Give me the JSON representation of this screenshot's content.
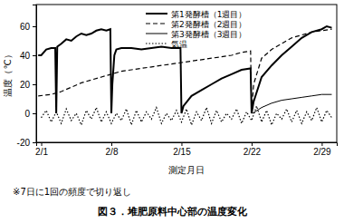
{
  "chart_data": {
    "type": "line",
    "title": "図３．堆肥原料中心部の温度変化",
    "subtitle": "※7日に1回の頻度で切り返し",
    "x_label": "測定月日",
    "y_label": "温度（℃）",
    "xlim": [
      0.5,
      30.5
    ],
    "xticks": [
      {
        "value": 1,
        "label": "2/1"
      },
      {
        "value": 8,
        "label": "2/8"
      },
      {
        "value": 15,
        "label": "2/15"
      },
      {
        "value": 22,
        "label": "2/22"
      },
      {
        "value": 29,
        "label": "2/29"
      }
    ],
    "ylim": [
      -20,
      75
    ],
    "yticks": [
      -20,
      0,
      20,
      40,
      60
    ],
    "grid": false,
    "legend": "top",
    "series": [
      {
        "name": "第1発酵槽（1週目）",
        "color": "#000000",
        "line_style": "solid",
        "x": [
          0.7,
          1,
          1.5,
          2,
          2.4,
          2.5,
          2.6,
          3,
          3.5,
          4,
          4.5,
          5,
          5.5,
          6,
          6.5,
          7,
          7.5,
          7.9,
          8.0,
          8.1,
          8.3,
          8.5,
          9,
          10,
          11,
          12,
          13,
          14,
          14.9,
          15.0,
          15.2,
          16,
          17,
          18,
          19,
          20,
          21,
          21.9,
          22.0,
          22.2,
          23,
          24,
          25,
          26,
          27,
          28,
          29,
          29.5,
          30
        ],
        "values": [
          40,
          40,
          44,
          45,
          45,
          0,
          46,
          48,
          51,
          50,
          53,
          55,
          54,
          55,
          57,
          58,
          57,
          58,
          0,
          20,
          40,
          44,
          45,
          45,
          44,
          45,
          46,
          45,
          45,
          0,
          5,
          12,
          16,
          20,
          24,
          27,
          30,
          31,
          0,
          8,
          25,
          33,
          40,
          46,
          52,
          56,
          58,
          60,
          59
        ]
      },
      {
        "name": "第2発酵槽（2週目）",
        "color": "#000000",
        "line_style": "dashed",
        "x": [
          0.7,
          2,
          3,
          4,
          5,
          6,
          7,
          8,
          9,
          10,
          11,
          12,
          13,
          14,
          15,
          16,
          17,
          18,
          19,
          20,
          21,
          21.9,
          22.0,
          22.2,
          23,
          24,
          25,
          26,
          27,
          28,
          29,
          30
        ],
        "values": [
          12,
          13,
          15,
          18,
          21,
          23,
          25,
          27,
          29,
          30,
          31,
          32,
          33,
          34,
          35,
          36,
          37,
          38,
          39,
          40,
          42,
          43,
          0,
          20,
          38,
          44,
          48,
          52,
          54,
          56,
          57,
          58
        ]
      },
      {
        "name": "第3発酵槽（3週目）",
        "color": "#000000",
        "line_style": "thin",
        "x": [
          22.1,
          23,
          24,
          25,
          26,
          27,
          28,
          29,
          30
        ],
        "values": [
          0,
          4,
          7,
          9,
          10,
          11,
          12,
          13,
          13
        ]
      },
      {
        "name": "気温",
        "color": "#000000",
        "line_style": "dotted",
        "x": [
          1,
          1.5,
          2,
          2.5,
          3,
          3.5,
          4,
          4.5,
          5,
          5.5,
          6,
          6.5,
          7,
          7.5,
          8,
          8.5,
          9,
          9.5,
          10,
          10.5,
          11,
          11.5,
          12,
          12.5,
          13,
          13.5,
          14,
          14.5,
          15,
          15.5,
          16,
          16.5,
          17,
          17.5,
          18,
          18.5,
          19,
          19.5,
          20,
          20.5,
          21,
          21.5,
          22,
          22.5,
          23,
          23.5,
          24,
          24.5,
          25,
          25.5,
          26,
          26.5,
          27,
          27.5,
          28,
          28.5,
          29,
          29.5,
          30
        ],
        "values": [
          -3,
          2,
          -6,
          1,
          -7,
          3,
          -5,
          0,
          -8,
          2,
          -4,
          4,
          -6,
          1,
          -7,
          0,
          -5,
          3,
          -8,
          2,
          -6,
          1,
          -4,
          4,
          -7,
          0,
          -5,
          2,
          -6,
          3,
          -8,
          1,
          -5,
          4,
          -7,
          2,
          -6,
          0,
          -4,
          3,
          -7,
          1,
          -5,
          5,
          -6,
          2,
          -8,
          0,
          -4,
          3,
          -6,
          2,
          -7,
          1,
          -5,
          4,
          -6,
          2,
          -3
        ]
      }
    ]
  }
}
